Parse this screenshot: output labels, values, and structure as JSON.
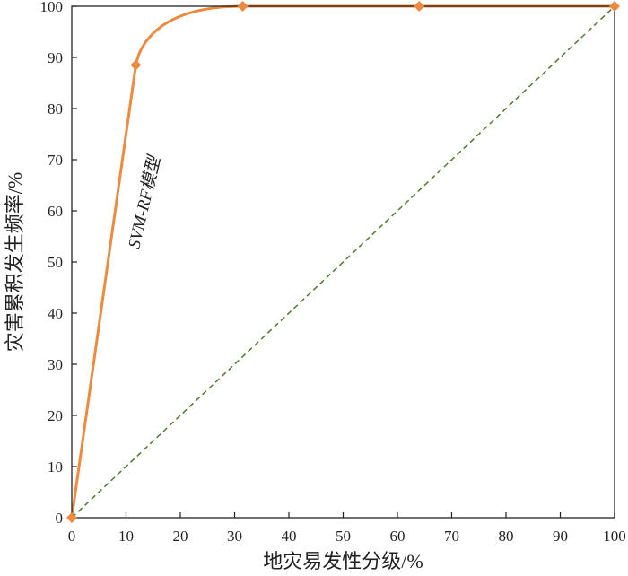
{
  "chart_data": {
    "type": "line",
    "title": "",
    "xlabel": "地灾易发性分级/%",
    "ylabel": "灾害累积发生频率/%",
    "xlim": [
      0,
      100
    ],
    "ylim": [
      0,
      100
    ],
    "xticks": [
      "0",
      "10",
      "20",
      "30",
      "40",
      "50",
      "60",
      "70",
      "80",
      "90",
      "100"
    ],
    "yticks": [
      "0",
      "10",
      "20",
      "30",
      "40",
      "50",
      "60",
      "70",
      "80",
      "90",
      "100"
    ],
    "grid": false,
    "legend": "none",
    "annotation": "SVM-RF模型",
    "series": [
      {
        "style": "solid-curve-diamond-markers",
        "color": "#ED8A3F",
        "x": [
          0,
          11.8,
          31.5,
          64,
          100
        ],
        "y": [
          0,
          88.5,
          100,
          100,
          100
        ]
      },
      {
        "style": "dashed-diagonal",
        "color": "#4F7A28",
        "x": [
          0,
          100
        ],
        "y": [
          0,
          100
        ]
      }
    ]
  }
}
